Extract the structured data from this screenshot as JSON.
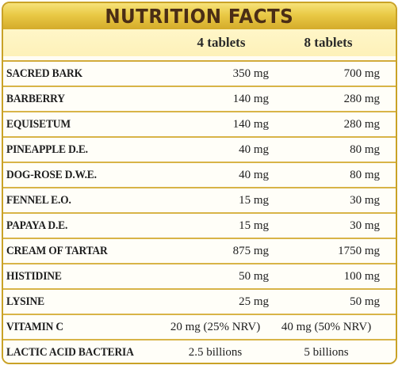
{
  "title": "NUTRITION FACTS",
  "columns": [
    "4 tablets",
    "8 tablets"
  ],
  "rows": [
    {
      "name": "SACRED BARK",
      "v1": "350 mg",
      "v2": "700 mg"
    },
    {
      "name": "BARBERRY",
      "v1": "140 mg",
      "v2": "280 mg"
    },
    {
      "name": "EQUISETUM",
      "v1": "140 mg",
      "v2": "280 mg"
    },
    {
      "name": "PINEAPPLE D.E.",
      "v1": "40 mg",
      "v2": "80 mg"
    },
    {
      "name": "DOG-ROSE D.W.E.",
      "v1": "40 mg",
      "v2": "80 mg"
    },
    {
      "name": "FENNEL E.O.",
      "v1": "15 mg",
      "v2": "30 mg"
    },
    {
      "name": "PAPAYA D.E.",
      "v1": "15 mg",
      "v2": "30 mg"
    },
    {
      "name": "CREAM OF TARTAR",
      "v1": "875 mg",
      "v2": "1750 mg"
    },
    {
      "name": "HISTIDINE",
      "v1": "50 mg",
      "v2": "100 mg"
    },
    {
      "name": "LYSINE",
      "v1": "25 mg",
      "v2": "50 mg"
    },
    {
      "name": "VITAMIN C",
      "v1": "20 mg (25% NRV)",
      "v2": "40 mg (50% NRV)"
    },
    {
      "name": "LACTIC ACID BACTERIA",
      "v1": "2.5 billions",
      "v2": "5 billions"
    }
  ],
  "colors": {
    "title_bar": "#e9c945",
    "title_text": "#4a2d16",
    "border": "#c9a227",
    "header_bg": "#fdf1b9"
  }
}
